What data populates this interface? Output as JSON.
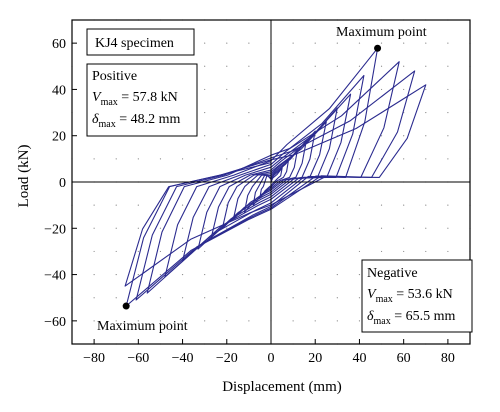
{
  "chart_data": {
    "type": "line",
    "title": "",
    "xlabel": "Displacement (mm)",
    "ylabel": "Load (kN)",
    "xlim": [
      -90,
      90
    ],
    "ylim": [
      -70,
      70
    ],
    "xticks": [
      -80,
      -60,
      -40,
      -20,
      0,
      20,
      40,
      60,
      80
    ],
    "yticks": [
      -60,
      -40,
      -20,
      0,
      20,
      40,
      60
    ],
    "xtick_labels": [
      "−80",
      "−60",
      "−40",
      "−20",
      "0",
      "20",
      "40",
      "60",
      "80"
    ],
    "ytick_labels": [
      "−60",
      "−40",
      "−20",
      "0",
      "20",
      "40",
      "60"
    ],
    "grid": "dotted",
    "line_color": "#2b2b8f",
    "specimen_label": "KJ4 specimen",
    "positive": {
      "heading": "Positive",
      "vmax_sym": "V",
      "vmax_sub": "max",
      "vmax_val": " = 57.8 kN",
      "dmax_sym": "δ",
      "dmax_sub": "max",
      "dmax_val": " = 48.2 mm"
    },
    "negative": {
      "heading": "Negative",
      "vmax_sym": "V",
      "vmax_sub": "max",
      "vmax_val": " = 53.6 kN",
      "dmax_sym": "δ",
      "dmax_sub": "max",
      "dmax_val": " = 65.5 mm"
    },
    "max_points": [
      {
        "label": "Maximum point",
        "x": 48.2,
        "y": 57.8
      },
      {
        "label": "Maximum point",
        "x": -65.5,
        "y": -53.6
      }
    ],
    "cycles": [
      {
        "dpos": 5,
        "fpos": 6,
        "dneg": -5,
        "fneg": -7
      },
      {
        "dpos": 8,
        "fpos": 10,
        "dneg": -8,
        "fneg": -10
      },
      {
        "dpos": 12,
        "fpos": 14,
        "dneg": -12,
        "fneg": -13
      },
      {
        "dpos": 16,
        "fpos": 18,
        "dneg": -17,
        "fneg": -16
      },
      {
        "dpos": 20,
        "fpos": 22,
        "dneg": -22,
        "fneg": -20
      },
      {
        "dpos": 25,
        "fpos": 26,
        "dneg": -27,
        "fneg": -24
      },
      {
        "dpos": 30,
        "fpos": 32,
        "dneg": -33,
        "fneg": -29
      },
      {
        "dpos": 36,
        "fpos": 38,
        "dneg": -40,
        "fneg": -34
      },
      {
        "dpos": 42,
        "fpos": 46,
        "dneg": -48,
        "fneg": -41
      },
      {
        "dpos": 48.2,
        "fpos": 57.8,
        "dneg": -56,
        "fneg": -48
      },
      {
        "dpos": 58,
        "fpos": 52,
        "dneg": -61,
        "fneg": -51
      },
      {
        "dpos": 65,
        "fpos": 48,
        "dneg": -65.5,
        "fneg": -53.6
      },
      {
        "dpos": 70,
        "fpos": 42,
        "dneg": -66,
        "fneg": -45
      }
    ]
  }
}
